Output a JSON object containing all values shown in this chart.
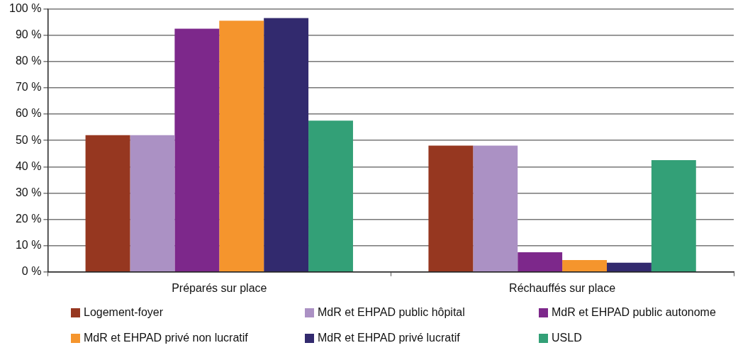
{
  "chart_data": {
    "type": "bar",
    "categories": [
      "Préparés sur place",
      "Réchauffés sur place"
    ],
    "series": [
      {
        "name": "Logement-foyer",
        "color": "#963720",
        "values": [
          52,
          48
        ]
      },
      {
        "name": "MdR et EHPAD public hôpital",
        "color": "#ab91c4",
        "values": [
          52,
          48
        ]
      },
      {
        "name": "MdR et EHPAD public autonome",
        "color": "#7d288b",
        "values": [
          92.5,
          7.5
        ]
      },
      {
        "name": "MdR et EHPAD privé non lucratif",
        "color": "#f5952d",
        "values": [
          95.5,
          4.5
        ]
      },
      {
        "name": "MdR et EHPAD privé lucratif",
        "color": "#322a6e",
        "values": [
          96.5,
          3.5
        ]
      },
      {
        "name": "USLD",
        "color": "#33a077",
        "values": [
          57.5,
          42.5
        ]
      }
    ],
    "ylim": [
      0,
      100
    ],
    "yticks": [
      {
        "value": 0,
        "label": "0 %"
      },
      {
        "value": 10,
        "label": "10 %"
      },
      {
        "value": 20,
        "label": "20 %"
      },
      {
        "value": 30,
        "label": "30 %"
      },
      {
        "value": 40,
        "label": "40 %"
      },
      {
        "value": 50,
        "label": "50 %"
      },
      {
        "value": 60,
        "label": "60 %"
      },
      {
        "value": 70,
        "label": "70 %"
      },
      {
        "value": 80,
        "label": "80 %"
      },
      {
        "value": 90,
        "label": "90 %"
      },
      {
        "value": 100,
        "label": "100 %"
      }
    ],
    "grid": "y",
    "legend": "bottom"
  }
}
